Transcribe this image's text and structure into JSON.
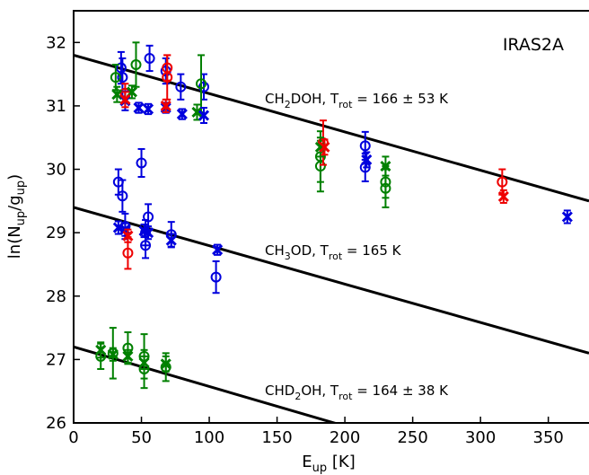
{
  "chart_data": {
    "type": "scatter",
    "panel_label": "IRAS2A",
    "xlabel": {
      "main": "E",
      "sub": "up",
      "tail": " [K]"
    },
    "ylabel": {
      "head": "ln(N",
      "sub1": "up",
      "mid": "/g",
      "sub2": "up",
      "tail": ")"
    },
    "xlim": [
      0,
      380
    ],
    "ylim": [
      26,
      32.5
    ],
    "xticks": [
      "0",
      "50",
      "100",
      "150",
      "200",
      "250",
      "300",
      "350"
    ],
    "yticks": [
      "26",
      "27",
      "28",
      "29",
      "30",
      "31",
      "32"
    ],
    "colors": {
      "blue": "#0000dd",
      "red": "#ee0000",
      "green": "#008000",
      "line": "#000000"
    },
    "fits": [
      {
        "id": "ch2doh",
        "x": [
          0,
          380
        ],
        "y": [
          31.8,
          29.5
        ],
        "label_parts": [
          "CH",
          "2",
          "DOH, T",
          "rot",
          " = 166 ± 53 K"
        ]
      },
      {
        "id": "ch3od",
        "x": [
          0,
          380
        ],
        "y": [
          29.4,
          27.1
        ],
        "label_parts": [
          "CH",
          "3",
          "OD, T",
          "rot",
          " = 165 K"
        ]
      },
      {
        "id": "chd2oh",
        "x": [
          0,
          200
        ],
        "y": [
          27.2,
          25.95
        ],
        "label_parts": [
          "CHD",
          "2",
          "OH, T",
          "rot",
          " = 164 ± 38 K"
        ]
      }
    ],
    "circles": [
      {
        "color": "blue",
        "x": 35,
        "y": 31.6,
        "err": 0.25
      },
      {
        "color": "blue",
        "x": 36,
        "y": 31.45,
        "err": 0.3
      },
      {
        "color": "blue",
        "x": 56,
        "y": 31.75,
        "err": 0.2
      },
      {
        "color": "blue",
        "x": 68,
        "y": 31.55,
        "err": 0.2
      },
      {
        "color": "blue",
        "x": 79,
        "y": 31.3,
        "err": 0.2
      },
      {
        "color": "blue",
        "x": 96,
        "y": 31.3,
        "err": 0.2
      },
      {
        "color": "blue",
        "x": 215,
        "y": 30.37,
        "err": 0.22
      },
      {
        "color": "blue",
        "x": 215,
        "y": 30.03,
        "err": 0.22
      },
      {
        "color": "green",
        "x": 31,
        "y": 31.45,
        "err": 0.2
      },
      {
        "color": "green",
        "x": 46,
        "y": 31.65,
        "err": 0.35
      },
      {
        "color": "green",
        "x": 94,
        "y": 31.35,
        "err": 0.45
      },
      {
        "color": "green",
        "x": 182,
        "y": 30.2,
        "err": 0.4
      },
      {
        "color": "green",
        "x": 182,
        "y": 30.05,
        "err": 0.4
      },
      {
        "color": "green",
        "x": 230,
        "y": 29.8,
        "err": 0.25
      },
      {
        "color": "green",
        "x": 230,
        "y": 29.7,
        "err": 0.3
      },
      {
        "color": "red",
        "x": 38,
        "y": 31.2,
        "err": 0.15
      },
      {
        "color": "red",
        "x": 69,
        "y": 31.6,
        "err": 0.2
      },
      {
        "color": "red",
        "x": 69,
        "y": 31.45,
        "err": 0.35
      },
      {
        "color": "red",
        "x": 184,
        "y": 30.42,
        "err": 0.35
      },
      {
        "color": "red",
        "x": 316,
        "y": 29.8,
        "err": 0.2
      },
      {
        "color": "blue",
        "x": 33,
        "y": 29.8,
        "err": 0.2
      },
      {
        "color": "blue",
        "x": 36,
        "y": 29.58,
        "err": 0.25
      },
      {
        "color": "blue",
        "x": 38,
        "y": 29.1,
        "err": 0.2
      },
      {
        "color": "blue",
        "x": 50,
        "y": 30.1,
        "err": 0.22
      },
      {
        "color": "blue",
        "x": 53,
        "y": 29.0,
        "err": 0.2
      },
      {
        "color": "blue",
        "x": 53,
        "y": 28.8,
        "err": 0.2
      },
      {
        "color": "blue",
        "x": 55,
        "y": 29.25,
        "err": 0.2
      },
      {
        "color": "blue",
        "x": 72,
        "y": 28.97,
        "err": 0.2
      },
      {
        "color": "blue",
        "x": 105,
        "y": 28.3,
        "err": 0.25
      },
      {
        "color": "red",
        "x": 40,
        "y": 28.68,
        "err": 0.25
      },
      {
        "color": "green",
        "x": 20,
        "y": 27.05,
        "err": 0.2
      },
      {
        "color": "green",
        "x": 29,
        "y": 27.1,
        "err": 0.4
      },
      {
        "color": "green",
        "x": 40,
        "y": 27.18,
        "err": 0.25
      },
      {
        "color": "green",
        "x": 52,
        "y": 26.85,
        "err": 0.3
      },
      {
        "color": "green",
        "x": 52,
        "y": 27.05,
        "err": 0.35
      },
      {
        "color": "green",
        "x": 68,
        "y": 26.88,
        "err": 0.22
      }
    ],
    "crosses": [
      {
        "color": "green",
        "x": 32,
        "y": 31.18,
        "err": 0.12
      },
      {
        "color": "green",
        "x": 43,
        "y": 31.22,
        "err": 0.1
      },
      {
        "color": "blue",
        "x": 38,
        "y": 31.08,
        "err": 0.15
      },
      {
        "color": "red",
        "x": 38,
        "y": 31.1,
        "err": 0.12
      },
      {
        "color": "blue",
        "x": 48,
        "y": 30.97,
        "err": 0.08
      },
      {
        "color": "blue",
        "x": 55,
        "y": 30.95,
        "err": 0.08
      },
      {
        "color": "blue",
        "x": 68,
        "y": 30.97,
        "err": 0.08
      },
      {
        "color": "red",
        "x": 68,
        "y": 31.0,
        "err": 0.1
      },
      {
        "color": "blue",
        "x": 80,
        "y": 30.87,
        "err": 0.08
      },
      {
        "color": "green",
        "x": 91,
        "y": 30.9,
        "err": 0.12
      },
      {
        "color": "blue",
        "x": 96,
        "y": 30.85,
        "err": 0.12
      },
      {
        "color": "green",
        "x": 182,
        "y": 30.35,
        "err": 0.15
      },
      {
        "color": "red",
        "x": 185,
        "y": 30.35,
        "err": 0.12
      },
      {
        "color": "blue",
        "x": 216,
        "y": 30.15,
        "err": 0.12
      },
      {
        "color": "green",
        "x": 230,
        "y": 30.05,
        "err": 0.15
      },
      {
        "color": "red",
        "x": 317,
        "y": 29.57,
        "err": 0.1
      },
      {
        "color": "blue",
        "x": 364,
        "y": 29.25,
        "err": 0.1
      },
      {
        "color": "blue",
        "x": 33,
        "y": 29.08,
        "err": 0.1
      },
      {
        "color": "blue",
        "x": 38,
        "y": 29.05,
        "err": 0.1
      },
      {
        "color": "red",
        "x": 40,
        "y": 28.95,
        "err": 0.1
      },
      {
        "color": "blue",
        "x": 52,
        "y": 29.03,
        "err": 0.1
      },
      {
        "color": "blue",
        "x": 55,
        "y": 29.0,
        "err": 0.1
      },
      {
        "color": "blue",
        "x": 72,
        "y": 28.88,
        "err": 0.1
      },
      {
        "color": "blue",
        "x": 106,
        "y": 28.73,
        "err": 0.08
      },
      {
        "color": "green",
        "x": 20,
        "y": 27.15,
        "err": 0.12
      },
      {
        "color": "green",
        "x": 29,
        "y": 27.08,
        "err": 0.1
      },
      {
        "color": "green",
        "x": 40,
        "y": 27.05,
        "err": 0.1
      },
      {
        "color": "green",
        "x": 52,
        "y": 26.95,
        "err": 0.1
      },
      {
        "color": "green",
        "x": 68,
        "y": 26.93,
        "err": 0.12
      }
    ]
  }
}
